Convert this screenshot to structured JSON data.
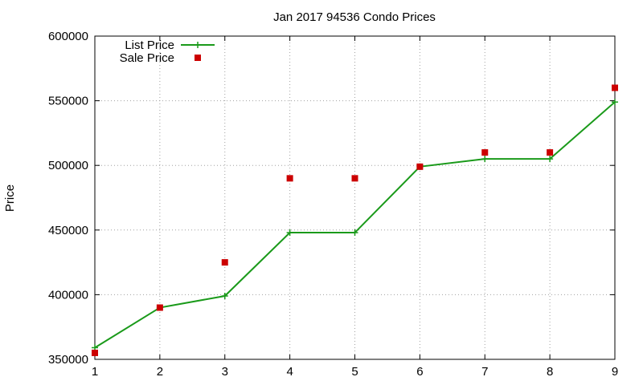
{
  "chart_data": {
    "type": "line",
    "title": "Jan 2017 94536 Condo Prices",
    "xlabel": "",
    "ylabel": "Price",
    "xlim": [
      1,
      9
    ],
    "ylim": [
      350000,
      600000
    ],
    "x_ticks": [
      1,
      2,
      3,
      4,
      5,
      6,
      7,
      8,
      9
    ],
    "y_ticks": [
      350000,
      400000,
      450000,
      500000,
      550000,
      600000
    ],
    "grid": true,
    "legend_position": "top-left",
    "x": [
      1,
      2,
      3,
      4,
      5,
      6,
      7,
      8,
      9
    ],
    "series": [
      {
        "name": "List Price",
        "style": "line+cross",
        "color": "#1a9a1a",
        "values": [
          359000,
          390000,
          399000,
          448000,
          448000,
          499000,
          505000,
          505000,
          549000
        ]
      },
      {
        "name": "Sale Price",
        "style": "square-markers",
        "color": "#cc0000",
        "values": [
          355000,
          390000,
          425000,
          490000,
          490000,
          499000,
          510000,
          510000,
          560000
        ]
      }
    ]
  }
}
